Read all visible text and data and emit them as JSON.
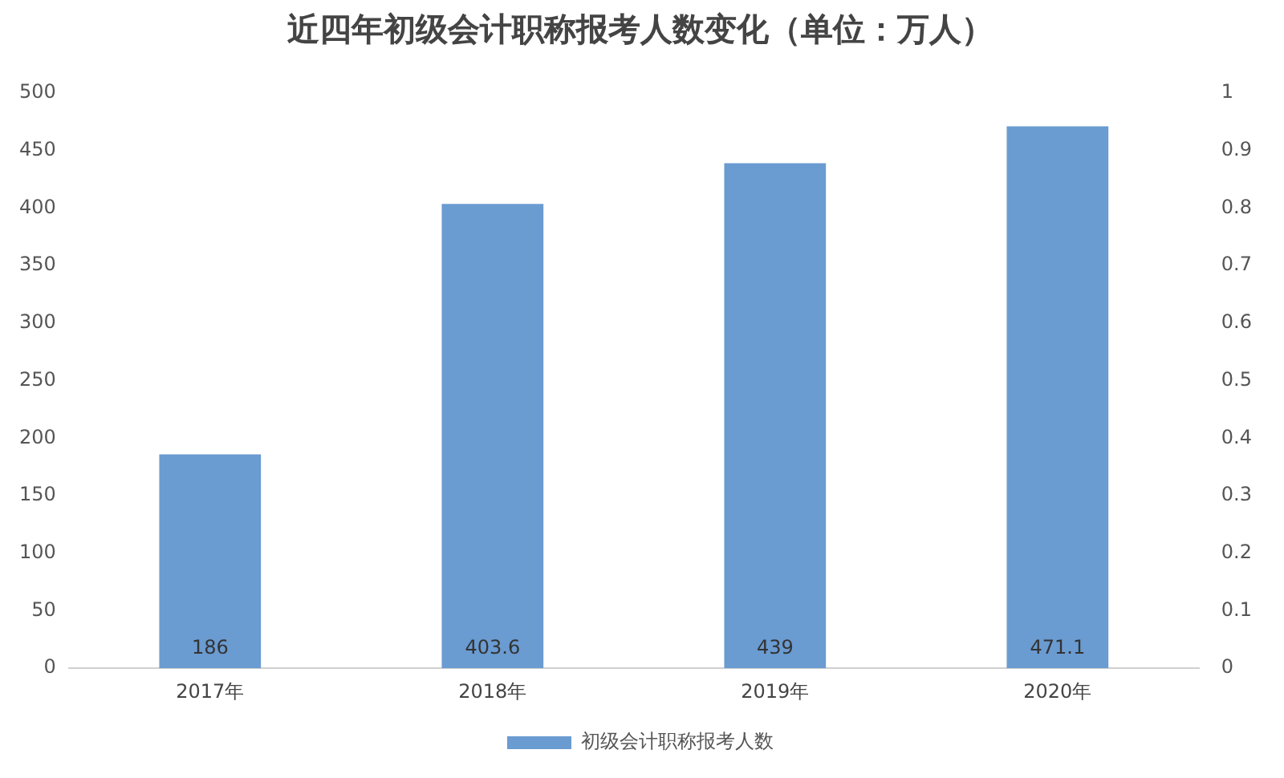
{
  "chart_data": {
    "type": "bar",
    "title": "近四年初级会计职称报考人数变化（单位：万人）",
    "categories": [
      "2017年",
      "2018年",
      "2019年",
      "2020年"
    ],
    "series": [
      {
        "name": "初级会计职称报考人数",
        "color": "#6a9bd1",
        "values": [
          186,
          403.6,
          439,
          471.1
        ]
      }
    ],
    "ylim": [
      0,
      500
    ],
    "yticks": [
      0,
      50,
      100,
      150,
      200,
      250,
      300,
      350,
      400,
      450,
      500
    ],
    "y2lim": [
      0,
      1
    ],
    "y2ticks": [
      0,
      0.1,
      0.2,
      0.3,
      0.4,
      0.5,
      0.6,
      0.7,
      0.8,
      0.9,
      1
    ],
    "data_labels": true,
    "grid": false,
    "legend": "bottom"
  }
}
